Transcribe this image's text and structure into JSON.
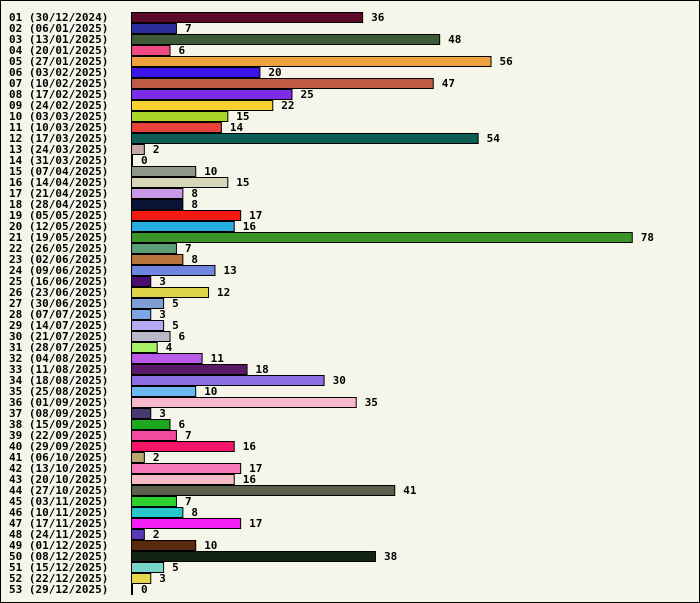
{
  "chart_data": {
    "type": "bar",
    "orientation": "horizontal",
    "title": "",
    "xlabel": "",
    "ylabel": "",
    "grid": false,
    "legend": "none",
    "categories": [
      "01 (30/12/2024)",
      "02 (06/01/2025)",
      "03 (13/01/2025)",
      "04 (20/01/2025)",
      "05 (27/01/2025)",
      "06 (03/02/2025)",
      "07 (10/02/2025)",
      "08 (17/02/2025)",
      "09 (24/02/2025)",
      "10 (03/03/2025)",
      "11 (10/03/2025)",
      "12 (17/03/2025)",
      "13 (24/03/2025)",
      "14 (31/03/2025)",
      "15 (07/04/2025)",
      "16 (14/04/2025)",
      "17 (21/04/2025)",
      "18 (28/04/2025)",
      "19 (05/05/2025)",
      "20 (12/05/2025)",
      "21 (19/05/2025)",
      "22 (26/05/2025)",
      "23 (02/06/2025)",
      "24 (09/06/2025)",
      "25 (16/06/2025)",
      "26 (23/06/2025)",
      "27 (30/06/2025)",
      "28 (07/07/2025)",
      "29 (14/07/2025)",
      "30 (21/07/2025)",
      "31 (28/07/2025)",
      "32 (04/08/2025)",
      "33 (11/08/2025)",
      "34 (18/08/2025)",
      "35 (25/08/2025)",
      "36 (01/09/2025)",
      "37 (08/09/2025)",
      "38 (15/09/2025)",
      "39 (22/09/2025)",
      "40 (29/09/2025)",
      "41 (06/10/2025)",
      "42 (13/10/2025)",
      "43 (20/10/2025)",
      "44 (27/10/2025)",
      "45 (03/11/2025)",
      "46 (10/11/2025)",
      "47 (17/11/2025)",
      "48 (24/11/2025)",
      "49 (01/12/2025)",
      "50 (08/12/2025)",
      "51 (15/12/2025)",
      "52 (22/12/2025)",
      "53 (29/12/2025)"
    ],
    "values": [
      36,
      7,
      48,
      6,
      56,
      20,
      47,
      25,
      22,
      15,
      14,
      54,
      2,
      0,
      10,
      15,
      8,
      8,
      17,
      16,
      78,
      7,
      8,
      13,
      3,
      12,
      5,
      3,
      5,
      6,
      4,
      11,
      18,
      30,
      10,
      35,
      3,
      6,
      7,
      16,
      2,
      17,
      16,
      41,
      7,
      8,
      17,
      2,
      10,
      38,
      5,
      3,
      0
    ],
    "colors": [
      "#5c0a2a",
      "#2b2f9e",
      "#3f5a36",
      "#f04a82",
      "#eea23e",
      "#3a17e8",
      "#c05a44",
      "#7d2de6",
      "#f7d22e",
      "#a8d62a",
      "#e8413a",
      "#0e5e56",
      "#c8a9a9",
      "#ffffff",
      "#8e968a",
      "#d6d6b8",
      "#c79ae8",
      "#0a1436",
      "#f41a12",
      "#26aee0",
      "#3a9428",
      "#5c9e78",
      "#b8743c",
      "#6e86e0",
      "#4a0e6e",
      "#e0d44a",
      "#7e9ed6",
      "#7ea6e6",
      "#b6a8f2",
      "#b8b8c8",
      "#a6f262",
      "#b95ae8",
      "#5a1868",
      "#8c6ee2",
      "#6cb8f2",
      "#f8b8cc",
      "#463a6e",
      "#1ea81e",
      "#f24a9e",
      "#f41468",
      "#b8a870",
      "#f778b8",
      "#f7bcc8",
      "#5a604c",
      "#2ed22e",
      "#26c8c8",
      "#f41ef4",
      "#5a3ab8",
      "#5a2a0e",
      "#142414",
      "#78d6c8",
      "#e4d84a",
      "#ffffff"
    ],
    "xlim": [
      0,
      78
    ]
  }
}
